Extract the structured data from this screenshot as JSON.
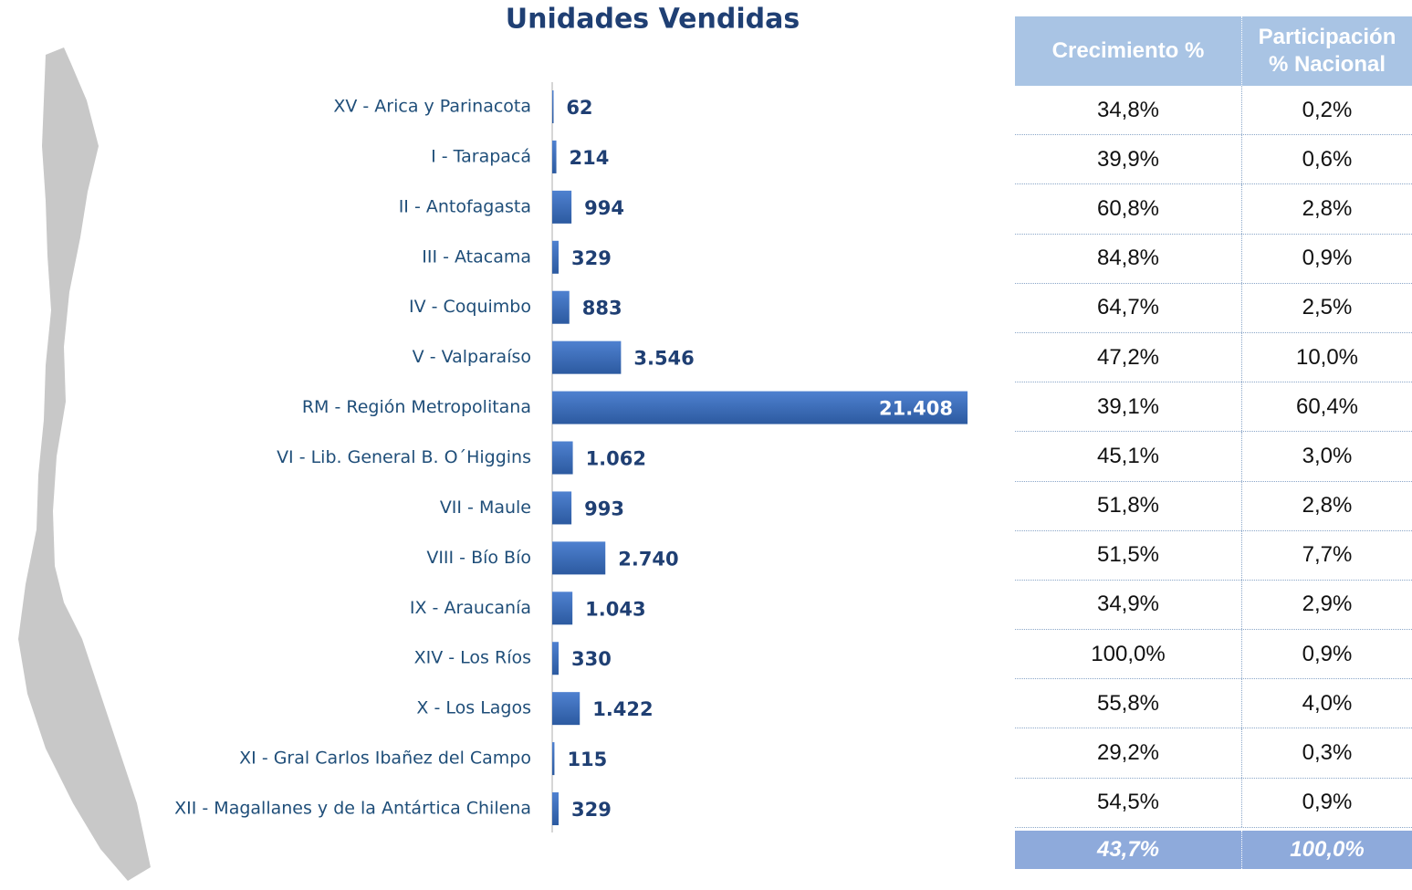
{
  "chart_data": {
    "type": "bar",
    "orientation": "horizontal",
    "title": "Unidades Vendidas",
    "categories": [
      "XV - Arica y Parinacota",
      "I - Tarapacá",
      "II - Antofagasta",
      "III - Atacama",
      "IV - Coquimbo",
      "V - Valparaíso",
      "RM - Región Metropolitana",
      "VI - Lib. General B. O´Higgins",
      "VII - Maule",
      "VIII - Bío Bío",
      "IX - Araucanía",
      "XIV - Los Ríos",
      "X - Los Lagos",
      "XI - Gral Carlos Ibañez del Campo",
      "XII - Magallanes y de la Antártica Chilena"
    ],
    "values": [
      62,
      214,
      994,
      329,
      883,
      3546,
      21408,
      1062,
      993,
      2740,
      1043,
      330,
      1422,
      115,
      329
    ],
    "value_labels": [
      "62",
      "214",
      "994",
      "329",
      "883",
      "3.546",
      "21.408",
      "1.062",
      "993",
      "2.740",
      "1.043",
      "330",
      "1.422",
      "115",
      "329"
    ],
    "color": "#3a6cc0",
    "xlim": [
      0,
      21500
    ]
  },
  "table": {
    "columns": [
      "Crecimiento %",
      "Participación % Nacional"
    ],
    "rows": [
      [
        "34,8%",
        "0,2%"
      ],
      [
        "39,9%",
        "0,6%"
      ],
      [
        "60,8%",
        "2,8%"
      ],
      [
        "84,8%",
        "0,9%"
      ],
      [
        "64,7%",
        "2,5%"
      ],
      [
        "47,2%",
        "10,0%"
      ],
      [
        "39,1%",
        "60,4%"
      ],
      [
        "45,1%",
        "3,0%"
      ],
      [
        "51,8%",
        "2,8%"
      ],
      [
        "51,5%",
        "7,7%"
      ],
      [
        "34,9%",
        "2,9%"
      ],
      [
        "100,0%",
        "0,9%"
      ],
      [
        "55,8%",
        "4,0%"
      ],
      [
        "29,2%",
        "0,3%"
      ],
      [
        "54,5%",
        "0,9%"
      ]
    ],
    "total": [
      "43,7%",
      "100,0%"
    ]
  }
}
